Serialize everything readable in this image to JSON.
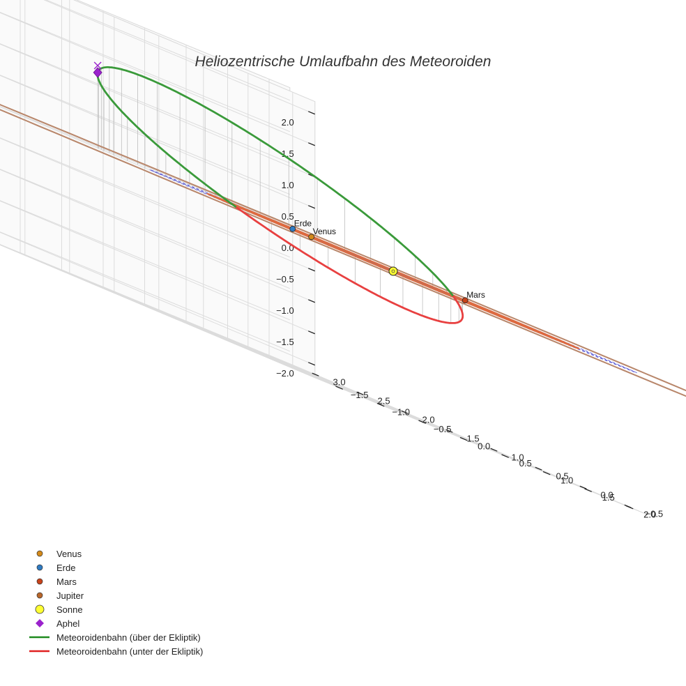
{
  "chart_data": {
    "type": "3d-orbit",
    "title": "Heliozentrische Umlaufbahn des Meteoroiden",
    "axes": {
      "x": {
        "label": "",
        "range": [
          -1.75,
          2.25
        ],
        "ticks": [
          "−1.5",
          "−1.0",
          "−0.5",
          "0.0",
          "0.5",
          "1.0",
          "1.5",
          "2.0"
        ]
      },
      "y": {
        "label": "",
        "range": [
          -0.75,
          3.25
        ],
        "ticks": [
          "−0.5",
          "0.0",
          "0.5",
          "1.0",
          "1.5",
          "2.0",
          "2.5",
          "3.0"
        ]
      },
      "z": {
        "label": "",
        "range": [
          -2.2,
          2.2
        ],
        "ticks": [
          "2.0",
          "1.5",
          "1.0",
          "0.5",
          "0.0",
          "−0.5",
          "−1.0",
          "−1.5",
          "−2.0"
        ]
      }
    },
    "grid": true,
    "reference_circles_radii_au": [
      1.0,
      1.5,
      2.0
    ],
    "orbits": [
      {
        "name": "Venus",
        "semi_major_au": 0.72,
        "color": "#d4a04a"
      },
      {
        "name": "Erde",
        "semi_major_au": 1.0,
        "color": "#3a7fc7"
      },
      {
        "name": "Mars",
        "semi_major_au": 1.52,
        "color": "#dd6a40"
      },
      {
        "name": "Jupiter",
        "semi_major_au": 5.2,
        "color": "#b8866a"
      }
    ],
    "planets": [
      {
        "name": "Venus",
        "label": "Venus",
        "color": "#d48a1a"
      },
      {
        "name": "Erde",
        "label": "Erde",
        "color": "#2f7bc2"
      },
      {
        "name": "Mars",
        "label": "Mars",
        "color": "#c8431a"
      },
      {
        "name": "Jupiter",
        "label": "",
        "color": "#b8662a"
      }
    ],
    "sun": {
      "name": "Sonne",
      "color": "#ffff33"
    },
    "aphel": {
      "name": "Aphel",
      "color": "#9a22cc"
    },
    "meteoroid": {
      "semi_major_au": 1.7,
      "eccentricity": 0.62,
      "inclination_deg": 40,
      "above_color": "#3a9a3a",
      "below_color": "#e84040"
    },
    "legend": {
      "position": "bottom-left",
      "items": [
        {
          "label": "Venus",
          "marker": "circle",
          "color": "#d48a1a"
        },
        {
          "label": "Erde",
          "marker": "circle",
          "color": "#2f7bc2"
        },
        {
          "label": "Mars",
          "marker": "circle",
          "color": "#c8431a"
        },
        {
          "label": "Jupiter",
          "marker": "circle",
          "color": "#b8662a"
        },
        {
          "label": "Sonne",
          "marker": "bigcircle",
          "color": "#ffff33"
        },
        {
          "label": "Aphel",
          "marker": "diamond",
          "color": "#9a22cc"
        },
        {
          "label": "Meteoroidenbahn (über der Ekliptik)",
          "marker": "line",
          "color": "#1e8a1e"
        },
        {
          "label": "Meteoroidenbahn (unter der Ekliptik)",
          "marker": "line",
          "color": "#e02020"
        }
      ]
    }
  }
}
